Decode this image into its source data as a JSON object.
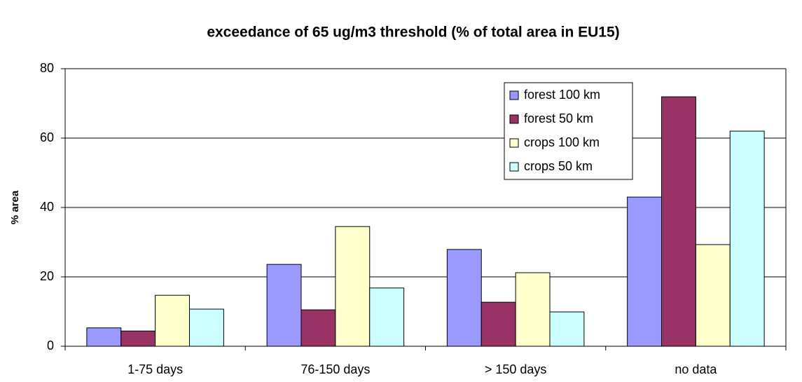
{
  "chart_data": {
    "type": "bar",
    "title": "exceedance of 65 ug/m3 threshold (% of total area in EU15)",
    "y_label": "% area",
    "categories": [
      "1-75 days",
      "76-150 days",
      "> 150 days",
      "no data"
    ],
    "series": [
      {
        "name": "forest 100 km",
        "color": "#9999ff",
        "values": [
          5.3,
          23.6,
          27.9,
          43.0
        ]
      },
      {
        "name": "forest 50 km",
        "color": "#993366",
        "values": [
          4.4,
          10.5,
          12.7,
          71.9
        ]
      },
      {
        "name": "crops 100 km",
        "color": "#ffffcc",
        "values": [
          14.7,
          34.5,
          21.2,
          29.3
        ]
      },
      {
        "name": "crops 50 km",
        "color": "#ccffff",
        "values": [
          10.7,
          16.8,
          9.9,
          62.0
        ]
      }
    ],
    "ylim": [
      0,
      80
    ],
    "yticks": [
      0,
      20,
      40,
      60,
      80
    ],
    "grid": true,
    "legend": "top-right"
  }
}
